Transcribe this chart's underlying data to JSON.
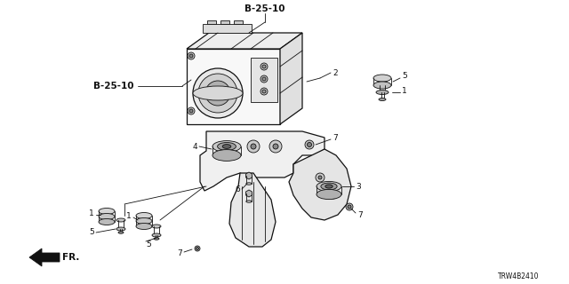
{
  "background_color": "#ffffff",
  "diagram_code": "TRW4B2410",
  "title_label": "B-25-10",
  "left_label": "B-25-10",
  "fr_arrow_text": "FR.",
  "fig_width": 6.4,
  "fig_height": 3.2,
  "dpi": 100,
  "lw_thin": 0.6,
  "lw_med": 0.9,
  "lw_thick": 1.2
}
